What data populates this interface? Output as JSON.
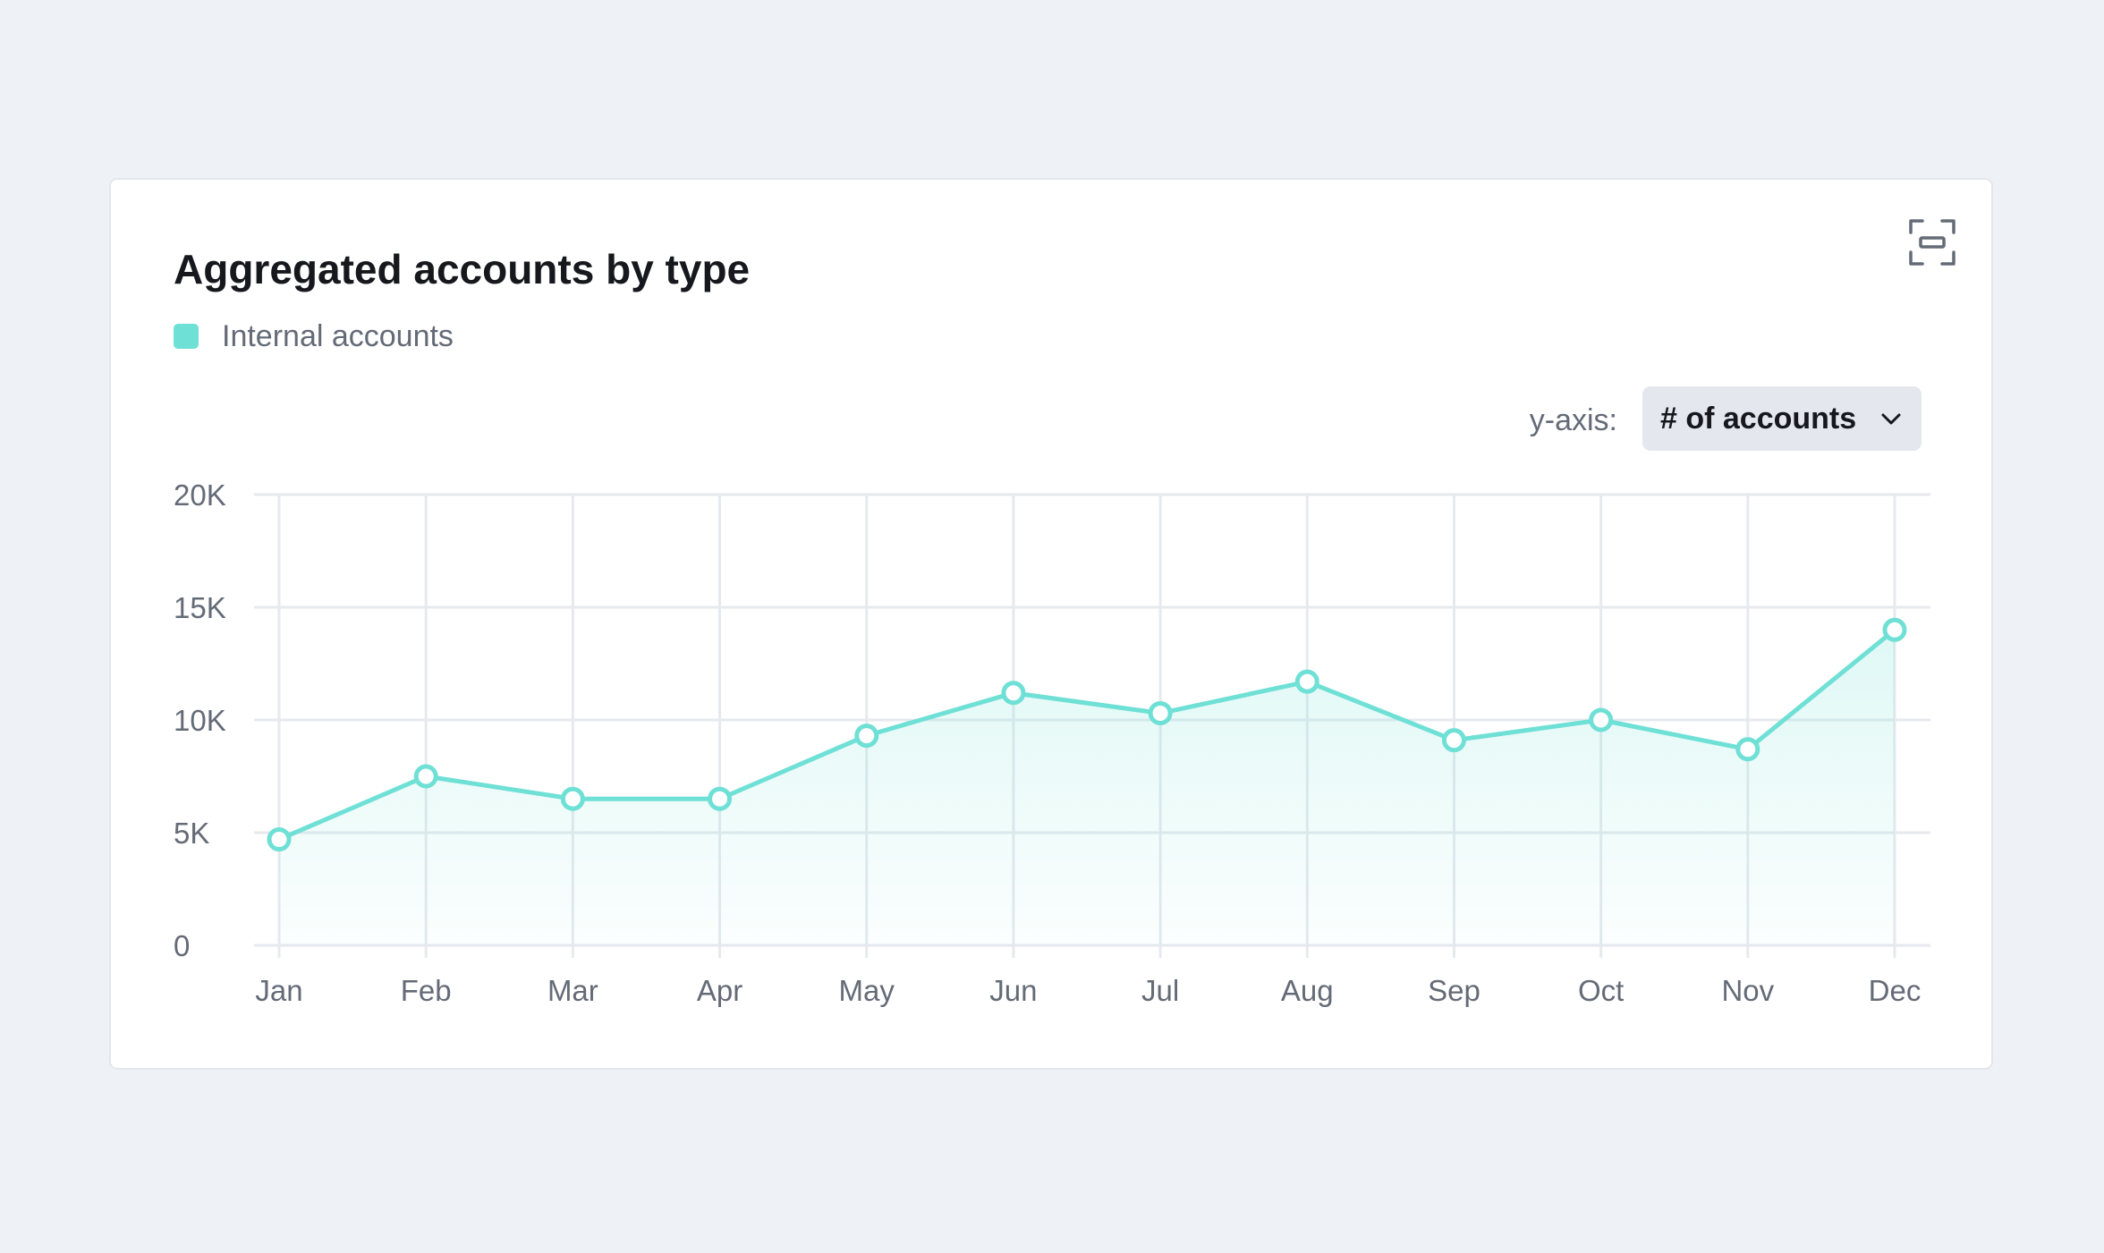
{
  "card": {
    "title": "Aggregated accounts by type",
    "expand_icon": "expand-icon"
  },
  "legend": {
    "items": [
      {
        "label": "Internal accounts",
        "color": "#6fe0d5"
      }
    ]
  },
  "y_axis_control": {
    "label": "y-axis:",
    "selected": "# of accounts",
    "caret_icon": "chevron-down-icon"
  },
  "chart_data": {
    "type": "area",
    "title": "Aggregated accounts by type",
    "categories": [
      "Jan",
      "Feb",
      "Mar",
      "Apr",
      "May",
      "Jun",
      "Jul",
      "Aug",
      "Sep",
      "Oct",
      "Nov",
      "Dec"
    ],
    "series": [
      {
        "name": "Internal accounts",
        "color": "#6fe0d5",
        "values": [
          4700,
          7500,
          6500,
          6500,
          9300,
          11200,
          10300,
          11700,
          9100,
          10000,
          8700,
          14000
        ]
      }
    ],
    "ylim": [
      0,
      20000
    ],
    "yticks": [
      0,
      5000,
      10000,
      15000,
      20000
    ],
    "ytick_labels": [
      "0",
      "5K",
      "10K",
      "15K",
      "20K"
    ],
    "grid": true,
    "legend_position": "top-left",
    "markers": "hollow-circle"
  }
}
